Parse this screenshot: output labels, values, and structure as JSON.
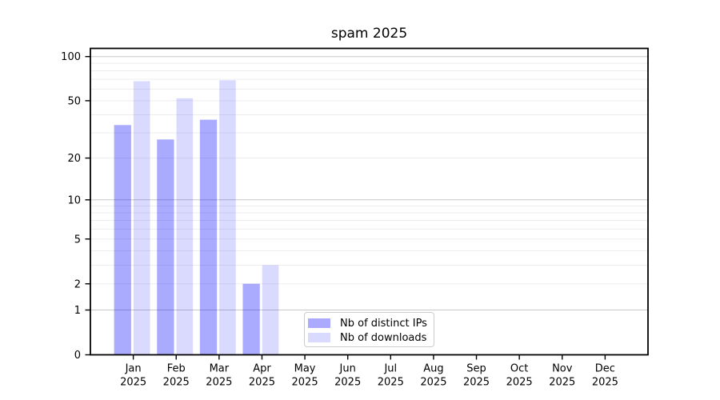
{
  "chart_data": {
    "type": "bar",
    "title": "spam 2025",
    "x_months": [
      "Jan",
      "Feb",
      "Mar",
      "Apr",
      "May",
      "Jun",
      "Jul",
      "Aug",
      "Sep",
      "Oct",
      "Nov",
      "Dec"
    ],
    "x_year": "2025",
    "series": [
      {
        "key": "distinct-ips",
        "name": "Nb of distinct IPs",
        "color": "rgba(0,0,255,0.335)",
        "values": [
          34,
          27,
          37,
          2,
          0,
          0,
          0,
          0,
          0,
          0,
          0,
          0
        ]
      },
      {
        "key": "downloads",
        "name": "Nb of downloads",
        "color": "rgba(0,0,255,0.145)",
        "values": [
          68,
          52,
          69,
          3,
          0,
          0,
          0,
          0,
          0,
          0,
          0,
          0
        ]
      }
    ],
    "ylabel": "",
    "xlabel": "",
    "yscale": "symlog-log1p",
    "ylim": [
      0,
      115
    ],
    "y_ticks": [
      0,
      1,
      2,
      5,
      10,
      20,
      50,
      100
    ],
    "y_major_gridlines": [
      1,
      10,
      100
    ],
    "y_minor_gridlines": [
      2,
      3,
      4,
      5,
      6,
      7,
      8,
      9,
      20,
      30,
      40,
      50,
      60,
      70,
      80,
      90
    ],
    "grid": "on",
    "legend_position": "lower center",
    "colors": {
      "axis": "#000000",
      "text": "#000000",
      "grid_major": "#c8c8c8",
      "grid_minor": "#ededf0",
      "background": "#ffffff"
    }
  }
}
